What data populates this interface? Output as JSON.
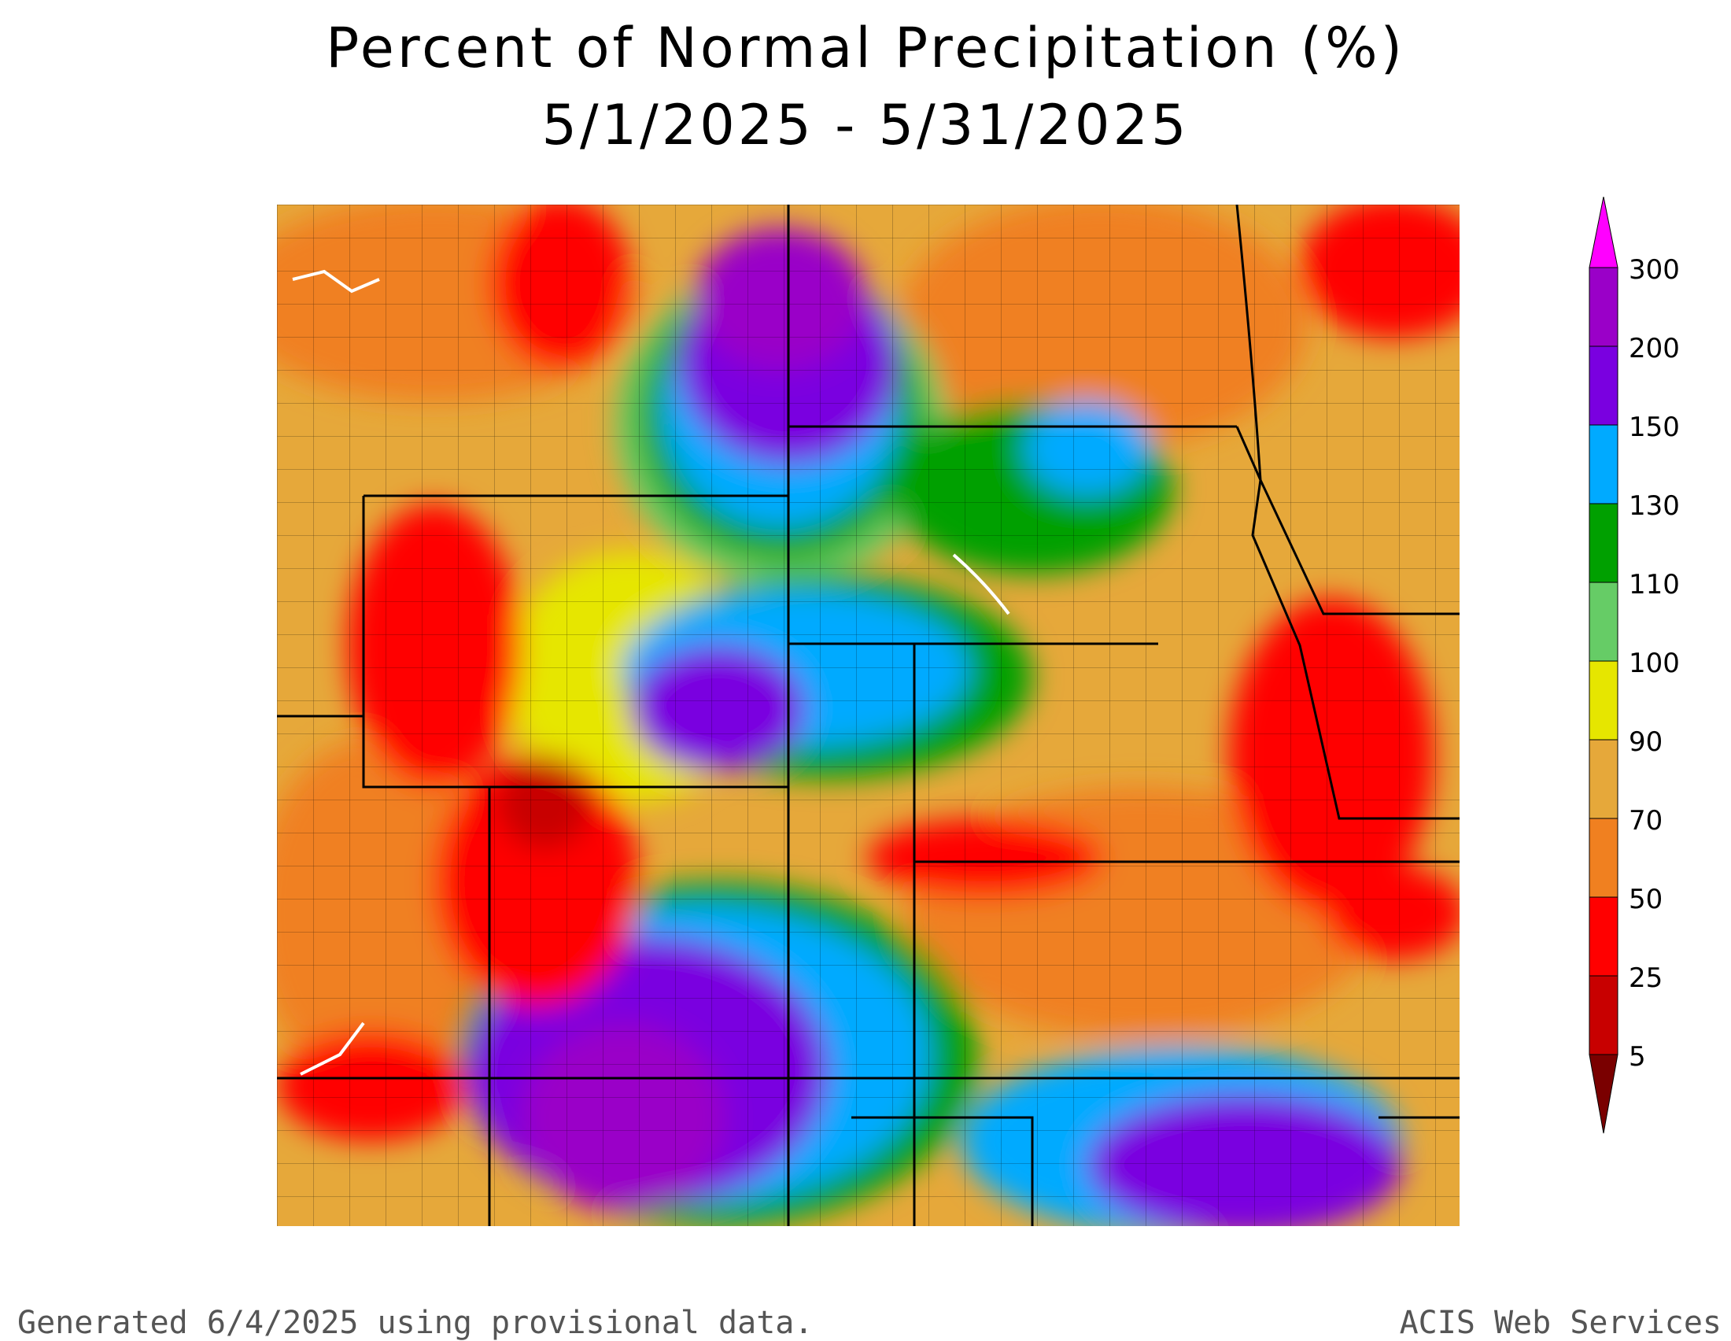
{
  "title": {
    "line1": "Percent of Normal Precipitation (%)",
    "line2": "5/1/2025 - 5/31/2025"
  },
  "legend": {
    "entries": [
      {
        "label": "300",
        "color": "#ff00ff"
      },
      {
        "label": "200",
        "color": "#9a00c8"
      },
      {
        "label": "150",
        "color": "#7a00e0"
      },
      {
        "label": "130",
        "color": "#00aaff"
      },
      {
        "label": "110",
        "color": "#00a000"
      },
      {
        "label": "100",
        "color": "#66cc66"
      },
      {
        "label": "90",
        "color": "#e6e600"
      },
      {
        "label": "70",
        "color": "#e6a83a"
      },
      {
        "label": "50",
        "color": "#f08020"
      },
      {
        "label": "25",
        "color": "#ff0000"
      },
      {
        "label": "5",
        "color": "#c80000"
      }
    ],
    "bottom_color": "#7a0000"
  },
  "footer": {
    "left": "Generated 6/4/2025 using provisional data.",
    "right": "ACIS Web Services"
  }
}
